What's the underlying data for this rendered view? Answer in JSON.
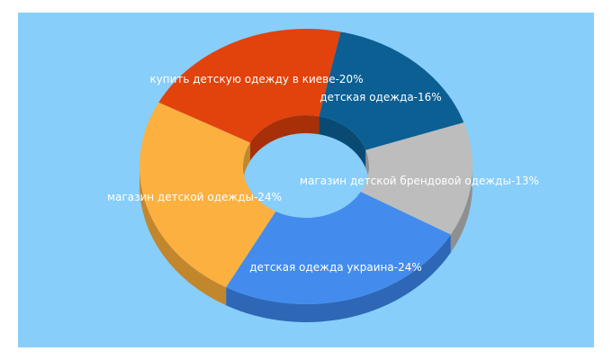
{
  "colors": {
    "background_panel": "#87CEFA",
    "page_background": "#ffffff",
    "label_text": "#ffffff"
  },
  "chart_data": {
    "type": "pie",
    "donut": true,
    "three_d": true,
    "slices": [
      {
        "label": "детская одежда-16%",
        "value": 16,
        "color": "#0B5F93",
        "side_color": "#084A72"
      },
      {
        "label": "магазин детской брендовой одежды-13%",
        "value": 13,
        "color": "#BDBDBD",
        "side_color": "#8F8F8F"
      },
      {
        "label": "детская одежда украина-24%",
        "value": 24,
        "color": "#438CEE",
        "side_color": "#2E67B5"
      },
      {
        "label": "магазин детской одежды-24%",
        "value": 24,
        "color": "#FBB040",
        "side_color": "#C2862D"
      },
      {
        "label": "купить детскую одежду в киеве-20%",
        "value": 20,
        "color": "#E2420C",
        "side_color": "#A83008"
      }
    ]
  }
}
